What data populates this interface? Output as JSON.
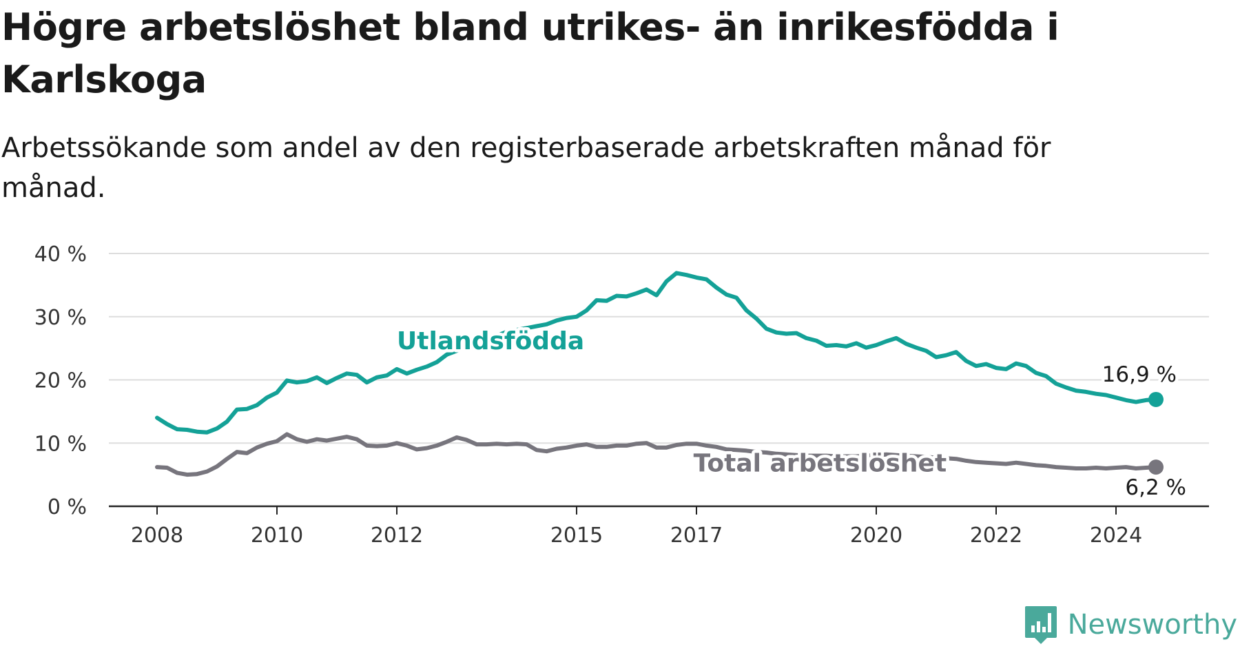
{
  "title": "Högre arbetslöshet bland utrikes- än inrikesfödda i Karlskoga",
  "subtitle": "Arbetssökande som andel av den registerbaserade arbetskraften månad för månad.",
  "brand": {
    "name": "Newsworthy",
    "color": "#4aa99b",
    "icon": "newsworthy-logo-icon"
  },
  "colors": {
    "foreign_born": "#14a197",
    "total": "#77757d",
    "grid": "#dddddd",
    "axis": "#222222"
  },
  "chart_data": {
    "type": "line",
    "ylim": [
      0,
      40
    ],
    "ytick_labels": [
      "0 %",
      "10 %",
      "20 %",
      "30 %",
      "40 %"
    ],
    "xtick_labels": [
      "2008",
      "2010",
      "2012",
      "2015",
      "2017",
      "2020",
      "2022",
      "2024"
    ],
    "grid": true,
    "series": [
      {
        "name": "Utlandsfödda",
        "end_label": "16,9 %",
        "points": [
          [
            "2008-01",
            14.0
          ],
          [
            "2008-03",
            13.0
          ],
          [
            "2008-05",
            12.2
          ],
          [
            "2008-07",
            12.1
          ],
          [
            "2008-09",
            11.8
          ],
          [
            "2008-11",
            11.7
          ],
          [
            "2009-01",
            12.3
          ],
          [
            "2009-03",
            13.4
          ],
          [
            "2009-05",
            15.3
          ],
          [
            "2009-07",
            15.4
          ],
          [
            "2009-09",
            16.0
          ],
          [
            "2009-11",
            17.2
          ],
          [
            "2010-01",
            18.0
          ],
          [
            "2010-03",
            19.9
          ],
          [
            "2010-05",
            19.6
          ],
          [
            "2010-07",
            19.8
          ],
          [
            "2010-09",
            20.4
          ],
          [
            "2010-11",
            19.5
          ],
          [
            "2011-01",
            20.3
          ],
          [
            "2011-03",
            21.0
          ],
          [
            "2011-05",
            20.8
          ],
          [
            "2011-07",
            19.6
          ],
          [
            "2011-09",
            20.4
          ],
          [
            "2011-11",
            20.7
          ],
          [
            "2012-01",
            21.7
          ],
          [
            "2012-03",
            21.0
          ],
          [
            "2012-05",
            21.6
          ],
          [
            "2012-07",
            22.1
          ],
          [
            "2012-09",
            22.8
          ],
          [
            "2012-11",
            24.0
          ],
          [
            "2013-01",
            24.6
          ],
          [
            "2013-03",
            25.2
          ],
          [
            "2013-05",
            25.8
          ],
          [
            "2013-07",
            26.4
          ],
          [
            "2013-09",
            27.0
          ],
          [
            "2013-11",
            27.6
          ],
          [
            "2014-01",
            27.9
          ],
          [
            "2014-03",
            28.2
          ],
          [
            "2014-05",
            28.5
          ],
          [
            "2014-07",
            28.8
          ],
          [
            "2014-09",
            29.4
          ],
          [
            "2014-11",
            29.8
          ],
          [
            "2015-01",
            30.0
          ],
          [
            "2015-03",
            31.0
          ],
          [
            "2015-05",
            32.6
          ],
          [
            "2015-07",
            32.5
          ],
          [
            "2015-09",
            33.3
          ],
          [
            "2015-11",
            33.2
          ],
          [
            "2016-01",
            33.7
          ],
          [
            "2016-03",
            34.3
          ],
          [
            "2016-05",
            33.4
          ],
          [
            "2016-07",
            35.6
          ],
          [
            "2016-09",
            36.9
          ],
          [
            "2016-11",
            36.6
          ],
          [
            "2017-01",
            36.2
          ],
          [
            "2017-03",
            35.9
          ],
          [
            "2017-05",
            34.6
          ],
          [
            "2017-07",
            33.5
          ],
          [
            "2017-09",
            33.0
          ],
          [
            "2017-11",
            31.0
          ],
          [
            "2018-01",
            29.7
          ],
          [
            "2018-03",
            28.1
          ],
          [
            "2018-05",
            27.5
          ],
          [
            "2018-07",
            27.3
          ],
          [
            "2018-09",
            27.4
          ],
          [
            "2018-11",
            26.6
          ],
          [
            "2019-01",
            26.2
          ],
          [
            "2019-03",
            25.4
          ],
          [
            "2019-05",
            25.5
          ],
          [
            "2019-07",
            25.3
          ],
          [
            "2019-09",
            25.8
          ],
          [
            "2019-11",
            25.1
          ],
          [
            "2020-01",
            25.5
          ],
          [
            "2020-03",
            26.1
          ],
          [
            "2020-05",
            26.6
          ],
          [
            "2020-07",
            25.7
          ],
          [
            "2020-09",
            25.1
          ],
          [
            "2020-11",
            24.6
          ],
          [
            "2021-01",
            23.6
          ],
          [
            "2021-03",
            23.9
          ],
          [
            "2021-05",
            24.4
          ],
          [
            "2021-07",
            23.0
          ],
          [
            "2021-09",
            22.2
          ],
          [
            "2021-11",
            22.5
          ],
          [
            "2022-01",
            21.9
          ],
          [
            "2022-03",
            21.7
          ],
          [
            "2022-05",
            22.6
          ],
          [
            "2022-07",
            22.2
          ],
          [
            "2022-09",
            21.1
          ],
          [
            "2022-11",
            20.6
          ],
          [
            "2023-01",
            19.4
          ],
          [
            "2023-03",
            18.8
          ],
          [
            "2023-05",
            18.3
          ],
          [
            "2023-07",
            18.1
          ],
          [
            "2023-09",
            17.8
          ],
          [
            "2023-11",
            17.6
          ],
          [
            "2024-01",
            17.2
          ],
          [
            "2024-03",
            16.8
          ],
          [
            "2024-05",
            16.5
          ],
          [
            "2024-07",
            16.8
          ],
          [
            "2024-09",
            16.9
          ]
        ]
      },
      {
        "name": "Total arbetslöshet",
        "end_label": "6,2 %",
        "points": [
          [
            "2008-01",
            6.2
          ],
          [
            "2008-03",
            6.1
          ],
          [
            "2008-05",
            5.3
          ],
          [
            "2008-07",
            5.0
          ],
          [
            "2008-09",
            5.1
          ],
          [
            "2008-11",
            5.5
          ],
          [
            "2009-01",
            6.3
          ],
          [
            "2009-03",
            7.5
          ],
          [
            "2009-05",
            8.6
          ],
          [
            "2009-07",
            8.4
          ],
          [
            "2009-09",
            9.3
          ],
          [
            "2009-11",
            9.9
          ],
          [
            "2010-01",
            10.3
          ],
          [
            "2010-03",
            11.4
          ],
          [
            "2010-05",
            10.6
          ],
          [
            "2010-07",
            10.2
          ],
          [
            "2010-09",
            10.6
          ],
          [
            "2010-11",
            10.4
          ],
          [
            "2011-01",
            10.7
          ],
          [
            "2011-03",
            11.0
          ],
          [
            "2011-05",
            10.6
          ],
          [
            "2011-07",
            9.6
          ],
          [
            "2011-09",
            9.5
          ],
          [
            "2011-11",
            9.6
          ],
          [
            "2012-01",
            10.0
          ],
          [
            "2012-03",
            9.6
          ],
          [
            "2012-05",
            9.0
          ],
          [
            "2012-07",
            9.2
          ],
          [
            "2012-09",
            9.6
          ],
          [
            "2012-11",
            10.2
          ],
          [
            "2013-01",
            10.9
          ],
          [
            "2013-03",
            10.5
          ],
          [
            "2013-05",
            9.8
          ],
          [
            "2013-07",
            9.8
          ],
          [
            "2013-09",
            9.9
          ],
          [
            "2013-11",
            9.8
          ],
          [
            "2014-01",
            9.9
          ],
          [
            "2014-03",
            9.8
          ],
          [
            "2014-05",
            8.9
          ],
          [
            "2014-07",
            8.7
          ],
          [
            "2014-09",
            9.1
          ],
          [
            "2014-11",
            9.3
          ],
          [
            "2015-01",
            9.6
          ],
          [
            "2015-03",
            9.8
          ],
          [
            "2015-05",
            9.4
          ],
          [
            "2015-07",
            9.4
          ],
          [
            "2015-09",
            9.6
          ],
          [
            "2015-11",
            9.6
          ],
          [
            "2016-01",
            9.9
          ],
          [
            "2016-03",
            10.0
          ],
          [
            "2016-05",
            9.3
          ],
          [
            "2016-07",
            9.3
          ],
          [
            "2016-09",
            9.7
          ],
          [
            "2016-11",
            9.9
          ],
          [
            "2017-01",
            9.9
          ],
          [
            "2017-03",
            9.6
          ],
          [
            "2017-05",
            9.4
          ],
          [
            "2017-07",
            9.0
          ],
          [
            "2017-09",
            8.9
          ],
          [
            "2017-11",
            8.8
          ],
          [
            "2018-01",
            8.6
          ],
          [
            "2018-03",
            8.5
          ],
          [
            "2018-05",
            8.3
          ],
          [
            "2018-07",
            8.2
          ],
          [
            "2018-09",
            8.1
          ],
          [
            "2018-11",
            8.0
          ],
          [
            "2019-01",
            8.0
          ],
          [
            "2019-03",
            8.0
          ],
          [
            "2019-05",
            7.9
          ],
          [
            "2019-07",
            7.9
          ],
          [
            "2019-09",
            7.9
          ],
          [
            "2019-11",
            8.0
          ],
          [
            "2020-01",
            8.1
          ],
          [
            "2020-03",
            8.2
          ],
          [
            "2020-05",
            8.1
          ],
          [
            "2020-07",
            8.0
          ],
          [
            "2020-09",
            7.9
          ],
          [
            "2020-11",
            7.8
          ],
          [
            "2021-01",
            7.7
          ],
          [
            "2021-03",
            7.6
          ],
          [
            "2021-05",
            7.5
          ],
          [
            "2021-07",
            7.2
          ],
          [
            "2021-09",
            7.0
          ],
          [
            "2021-11",
            6.9
          ],
          [
            "2022-01",
            6.8
          ],
          [
            "2022-03",
            6.7
          ],
          [
            "2022-05",
            6.9
          ],
          [
            "2022-07",
            6.7
          ],
          [
            "2022-09",
            6.5
          ],
          [
            "2022-11",
            6.4
          ],
          [
            "2023-01",
            6.2
          ],
          [
            "2023-03",
            6.1
          ],
          [
            "2023-05",
            6.0
          ],
          [
            "2023-07",
            6.0
          ],
          [
            "2023-09",
            6.1
          ],
          [
            "2023-11",
            6.0
          ],
          [
            "2024-01",
            6.1
          ],
          [
            "2024-03",
            6.2
          ],
          [
            "2024-05",
            6.0
          ],
          [
            "2024-07",
            6.1
          ],
          [
            "2024-09",
            6.2
          ]
        ]
      }
    ]
  }
}
